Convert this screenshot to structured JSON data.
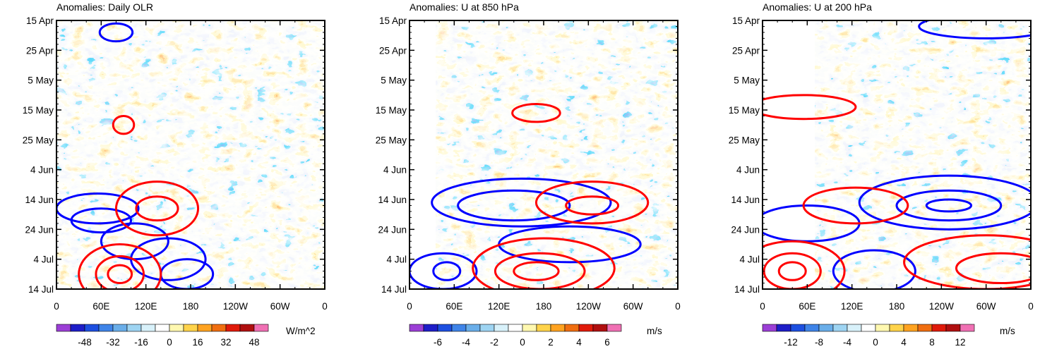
{
  "chart_data": [
    {
      "type": "heatmap",
      "title": "Anomalies: Daily OLR",
      "y_ticks": [
        "15 Apr",
        "25 Apr",
        "5 May",
        "15 May",
        "25 May",
        "4 Jun",
        "14 Jun",
        "24 Jun",
        "4 Jul",
        "14 Jul"
      ],
      "x_ticks": [
        "0",
        "60E",
        "120E",
        "180",
        "120W",
        "60W",
        "0"
      ],
      "x_range_deg": [
        0,
        360
      ],
      "colorbar": {
        "labels": [
          "-48",
          "-32",
          "-16",
          "0",
          "16",
          "32",
          "48"
        ],
        "levels": [
          -56,
          -48,
          -40,
          -32,
          -24,
          -16,
          -8,
          0,
          8,
          16,
          24,
          32,
          40,
          48,
          56
        ],
        "unit": "W/m^2"
      },
      "contours": [
        {
          "color": "#0000ff",
          "day": 63,
          "lon": 55,
          "w": 55,
          "h": 5
        },
        {
          "color": "#0000ff",
          "day": 67,
          "lon": 60,
          "w": 40,
          "h": 4
        },
        {
          "color": "#0000ff",
          "day": 74,
          "lon": 105,
          "w": 45,
          "h": 6
        },
        {
          "color": "#0000ff",
          "day": 80,
          "lon": 150,
          "w": 50,
          "h": 7
        },
        {
          "color": "#0000ff",
          "day": 85,
          "lon": 175,
          "w": 35,
          "h": 5
        },
        {
          "color": "#ff0000",
          "day": 63,
          "lon": 135,
          "w": 55,
          "h": 9
        },
        {
          "color": "#ff0000",
          "day": 63,
          "lon": 135,
          "w": 28,
          "h": 4
        },
        {
          "color": "#ff0000",
          "day": 85,
          "lon": 85,
          "w": 55,
          "h": 10
        },
        {
          "color": "#ff0000",
          "day": 85,
          "lon": 85,
          "w": 32,
          "h": 6
        },
        {
          "color": "#ff0000",
          "day": 85,
          "lon": 85,
          "w": 16,
          "h": 3
        },
        {
          "color": "#ff0000",
          "day": 35,
          "lon": 90,
          "w": 14,
          "h": 3
        },
        {
          "color": "#0000ff",
          "day": 4,
          "lon": 80,
          "w": 22,
          "h": 3
        }
      ]
    },
    {
      "type": "heatmap",
      "title": "Anomalies: U at 850 hPa",
      "y_ticks": [
        "15 Apr",
        "25 Apr",
        "5 May",
        "15 May",
        "25 May",
        "4 Jun",
        "14 Jun",
        "24 Jun",
        "4 Jul",
        "14 Jul"
      ],
      "x_ticks": [
        "0",
        "60E",
        "120E",
        "180",
        "120W",
        "60W",
        "0"
      ],
      "x_range_deg": [
        0,
        360
      ],
      "colorbar": {
        "labels": [
          "-6",
          "-4",
          "-2",
          "0",
          "2",
          "4",
          "6"
        ],
        "levels": [
          -7,
          -6,
          -5,
          -4,
          -3,
          -2,
          -1,
          0,
          1,
          2,
          3,
          4,
          5,
          6,
          7
        ],
        "unit": "m/s"
      },
      "contours": [
        {
          "color": "#0000ff",
          "day": 61,
          "lon": 150,
          "w": 120,
          "h": 8
        },
        {
          "color": "#0000ff",
          "day": 62,
          "lon": 140,
          "w": 75,
          "h": 5
        },
        {
          "color": "#0000ff",
          "day": 75,
          "lon": 215,
          "w": 95,
          "h": 6
        },
        {
          "color": "#0000ff",
          "day": 84,
          "lon": 45,
          "w": 45,
          "h": 6
        },
        {
          "color": "#0000ff",
          "day": 84,
          "lon": 50,
          "w": 18,
          "h": 3
        },
        {
          "color": "#ff0000",
          "day": 61,
          "lon": 245,
          "w": 75,
          "h": 7
        },
        {
          "color": "#ff0000",
          "day": 62,
          "lon": 245,
          "w": 35,
          "h": 3
        },
        {
          "color": "#ff0000",
          "day": 83,
          "lon": 180,
          "w": 95,
          "h": 10
        },
        {
          "color": "#ff0000",
          "day": 84,
          "lon": 175,
          "w": 60,
          "h": 6
        },
        {
          "color": "#ff0000",
          "day": 84,
          "lon": 170,
          "w": 30,
          "h": 3
        },
        {
          "color": "#ff0000",
          "day": 31,
          "lon": 170,
          "w": 32,
          "h": 3
        }
      ]
    },
    {
      "type": "heatmap",
      "title": "Anomalies: U at 200 hPa",
      "y_ticks": [
        "15 Apr",
        "25 Apr",
        "5 May",
        "15 May",
        "25 May",
        "4 Jun",
        "14 Jun",
        "24 Jun",
        "4 Jul",
        "14 Jul"
      ],
      "x_ticks": [
        "0",
        "60E",
        "120E",
        "180",
        "120W",
        "60W",
        "0"
      ],
      "x_range_deg": [
        0,
        360
      ],
      "colorbar": {
        "labels": [
          "-12",
          "-8",
          "-4",
          "0",
          "4",
          "8",
          "12"
        ],
        "levels": [
          -14,
          -12,
          -10,
          -8,
          -6,
          -4,
          -2,
          0,
          2,
          4,
          6,
          8,
          10,
          12,
          14
        ],
        "unit": "m/s"
      },
      "contours": [
        {
          "color": "#0000ff",
          "day": 61,
          "lon": 250,
          "w": 120,
          "h": 9
        },
        {
          "color": "#0000ff",
          "day": 62,
          "lon": 250,
          "w": 70,
          "h": 5
        },
        {
          "color": "#0000ff",
          "day": 62,
          "lon": 250,
          "w": 30,
          "h": 2
        },
        {
          "color": "#0000ff",
          "day": 68,
          "lon": 60,
          "w": 70,
          "h": 6
        },
        {
          "color": "#0000ff",
          "day": 84,
          "lon": 150,
          "w": 55,
          "h": 7
        },
        {
          "color": "#0000ff",
          "day": 2,
          "lon": 300,
          "w": 90,
          "h": 4
        },
        {
          "color": "#ff0000",
          "day": 62,
          "lon": 125,
          "w": 70,
          "h": 6
        },
        {
          "color": "#ff0000",
          "day": 84,
          "lon": 40,
          "w": 70,
          "h": 10
        },
        {
          "color": "#ff0000",
          "day": 84,
          "lon": 40,
          "w": 38,
          "h": 6
        },
        {
          "color": "#ff0000",
          "day": 84,
          "lon": 40,
          "w": 18,
          "h": 3
        },
        {
          "color": "#ff0000",
          "day": 81,
          "lon": 300,
          "w": 110,
          "h": 9
        },
        {
          "color": "#ff0000",
          "day": 83,
          "lon": 320,
          "w": 60,
          "h": 5
        },
        {
          "color": "#ff0000",
          "day": 29,
          "lon": 55,
          "w": 70,
          "h": 4
        }
      ]
    }
  ]
}
